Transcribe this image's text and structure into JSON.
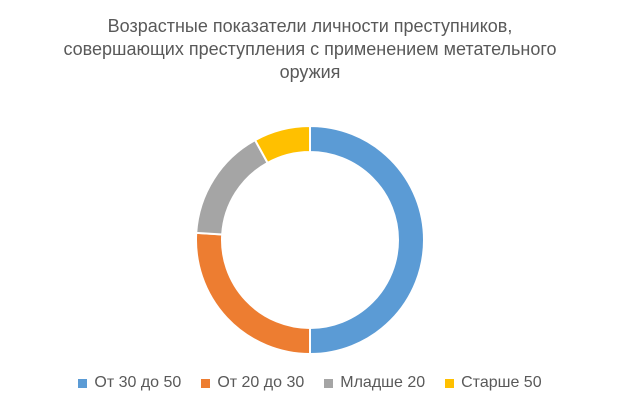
{
  "chart_data": {
    "type": "pie",
    "title": [
      "Возрастные показатели личности преступников,",
      "совершающих преступления с применением метательного",
      "оружия"
    ],
    "categories": [
      "От 30 до 50",
      "От 20 до 30",
      "Младше 20",
      "Старше 50"
    ],
    "values": [
      50,
      26,
      16,
      8
    ],
    "colors": [
      "#5B9BD5",
      "#ED7D31",
      "#A5A5A5",
      "#FFC000"
    ],
    "donut": true,
    "legend_position": "bottom"
  }
}
